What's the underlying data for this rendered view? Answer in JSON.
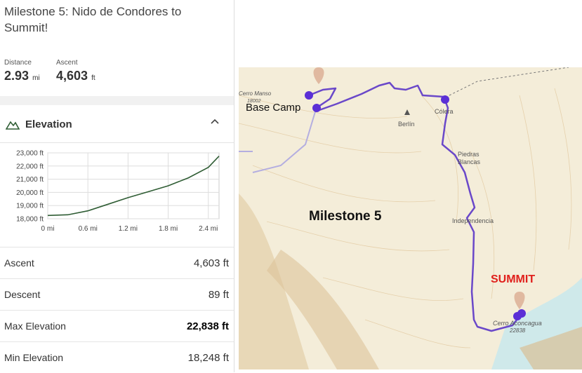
{
  "header": {
    "title": "Milestone 5: Nido de Condores to Summit!"
  },
  "stats": [
    {
      "label": "Distance",
      "value": "2.93",
      "unit": "mi"
    },
    {
      "label": "Ascent",
      "value": "4,603",
      "unit": "ft"
    }
  ],
  "section": {
    "title": "Elevation"
  },
  "chart_data": {
    "type": "line",
    "color": "#2f5d34",
    "grid": true,
    "x": [
      0,
      0.3,
      0.6,
      0.9,
      1.2,
      1.5,
      1.8,
      2.1,
      2.4,
      2.56
    ],
    "values": [
      18248,
      18300,
      18600,
      19100,
      19600,
      20050,
      20500,
      21100,
      21900,
      22750
    ],
    "xlim": [
      0,
      2.56
    ],
    "ylim": [
      18000,
      23000
    ],
    "xticks": [
      {
        "value": 0,
        "label": "0 mi"
      },
      {
        "value": 0.6,
        "label": "0.6 mi"
      },
      {
        "value": 1.2,
        "label": "1.2 mi"
      },
      {
        "value": 1.8,
        "label": "1.8 mi"
      },
      {
        "value": 2.4,
        "label": "2.4 mi"
      }
    ],
    "yticks": [
      {
        "value": 23000,
        "label": "23,000 ft"
      },
      {
        "value": 22000,
        "label": "22,000 ft"
      },
      {
        "value": 21000,
        "label": "21,000 ft"
      },
      {
        "value": 20000,
        "label": "20,000 ft"
      },
      {
        "value": 19000,
        "label": "19,000 ft"
      },
      {
        "value": 18000,
        "label": "18,000 ft"
      }
    ]
  },
  "table": {
    "rows": [
      [
        "Ascent",
        "4,603 ft"
      ],
      [
        "Descent",
        "89 ft"
      ],
      [
        "Max Elevation",
        "22,838 ft"
      ],
      [
        "Min Elevation",
        "18,248 ft"
      ]
    ]
  },
  "map": {
    "labels": {
      "base_camp": "Base Camp",
      "milestone": "Milestone 5",
      "summit": "SUMMIT",
      "colera": "Cólera",
      "berlin": "Berlín",
      "piedras_1": "Piedras",
      "piedras_2": "Blancas",
      "independencia": "Independencia",
      "aconcagua": "Cerro Aconcagua",
      "aconcagua_elev": "22838",
      "manso": "Cerro Manso",
      "manso_elev": "18002"
    }
  }
}
